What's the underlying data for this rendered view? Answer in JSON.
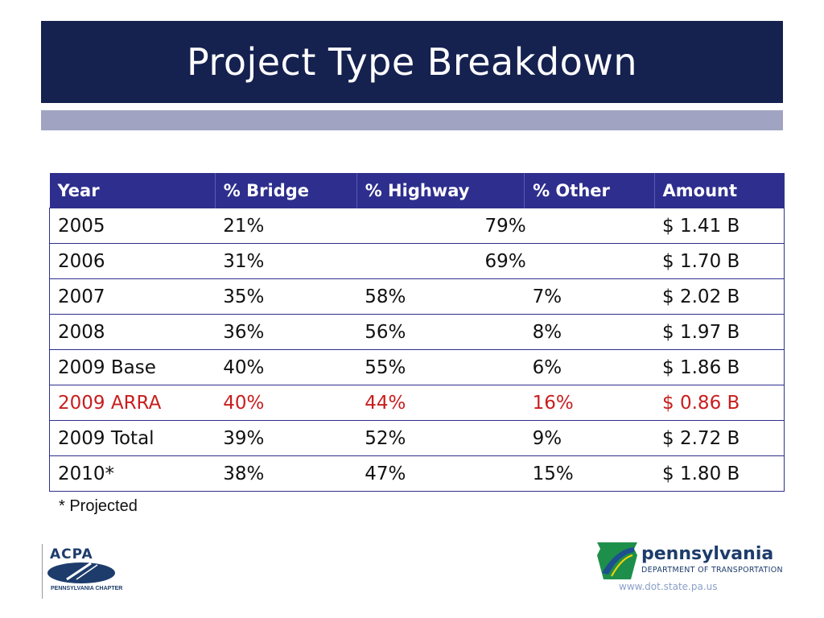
{
  "slide": {
    "title": "Project Type Breakdown"
  },
  "table": {
    "headers": [
      "Year",
      "% Bridge",
      "% Highway",
      "% Other",
      "Amount"
    ],
    "rows": [
      {
        "year": "2005",
        "bridge": "21%",
        "highway_other": "79%",
        "amount": "$ 1.41 B"
      },
      {
        "year": "2006",
        "bridge": "31%",
        "highway_other": "69%",
        "amount": "$ 1.70 B"
      },
      {
        "year": "2007",
        "bridge": "35%",
        "highway": "58%",
        "other": "7%",
        "amount": "$ 2.02 B"
      },
      {
        "year": "2008",
        "bridge": "36%",
        "highway": "56%",
        "other": "8%",
        "amount": "$ 1.97 B"
      },
      {
        "year": "2009 Base",
        "bridge": "40%",
        "highway": "55%",
        "other": "6%",
        "amount": "$ 1.86 B"
      },
      {
        "year": "2009 ARRA",
        "bridge": "40%",
        "highway": "44%",
        "other": "16%",
        "amount": "$ 0.86 B"
      },
      {
        "year": "2009 Total",
        "bridge": "39%",
        "highway": "52%",
        "other": "9%",
        "amount": "$ 2.72 B"
      },
      {
        "year": "2010*",
        "bridge": "38%",
        "highway": "47%",
        "other": "15%",
        "amount": "$ 1.80 B"
      }
    ],
    "highlight_color": "#c81e1e",
    "header_color": "#2e2e8e"
  },
  "footnote": "* Projected",
  "logos": {
    "acpa": {
      "name": "ACPA",
      "chapter": "PENNSYLVANIA CHAPTER"
    },
    "penndot": {
      "name": "pennsylvania",
      "dept": "DEPARTMENT OF TRANSPORTATION",
      "url": "www.dot.state.pa.us"
    }
  },
  "colors": {
    "title_bar": "#15214f",
    "sub_bar": "#a1a3c2"
  }
}
